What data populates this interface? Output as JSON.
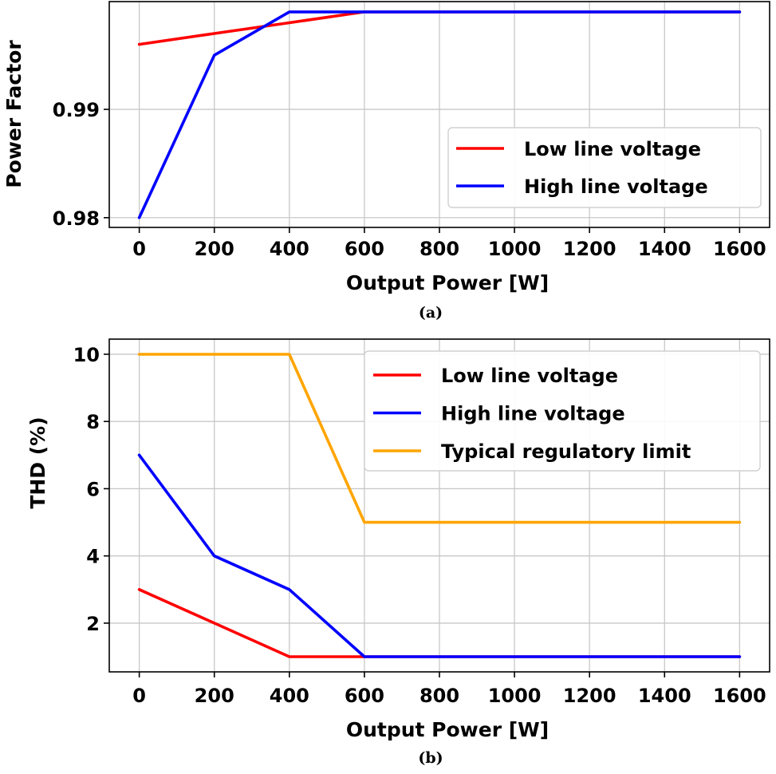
{
  "chart_data": [
    {
      "type": "line",
      "panel_label": "(a)",
      "xlabel": "Output Power [W]",
      "ylabel": "Power Factor",
      "x": [
        0,
        200,
        400,
        600,
        800,
        1000,
        1200,
        1400,
        1600
      ],
      "xticks": [
        "0",
        "200",
        "400",
        "600",
        "800",
        "1000",
        "1200",
        "1400",
        "1600"
      ],
      "yticks": [
        0.98,
        0.99
      ],
      "ytick_labels": [
        "0.98",
        "0.99"
      ],
      "ylim": [
        0.9791,
        0.99995
      ],
      "xlim": [
        -80,
        1680
      ],
      "legend_position": "center-right",
      "series": [
        {
          "name": "Low line voltage",
          "color": "#ff0000",
          "values": [
            0.996,
            0.997,
            0.998,
            0.999,
            0.999,
            0.999,
            0.999,
            0.999,
            0.999
          ]
        },
        {
          "name": "High line voltage",
          "color": "#0000ff",
          "values": [
            0.98,
            0.995,
            0.999,
            0.999,
            0.999,
            0.999,
            0.999,
            0.999,
            0.999
          ]
        }
      ]
    },
    {
      "type": "line",
      "panel_label": "(b)",
      "xlabel": "Output Power [W]",
      "ylabel": "THD (%)",
      "x": [
        0,
        200,
        400,
        600,
        800,
        1000,
        1200,
        1400,
        1600
      ],
      "xticks": [
        "0",
        "200",
        "400",
        "600",
        "800",
        "1000",
        "1200",
        "1400",
        "1600"
      ],
      "yticks": [
        2,
        4,
        6,
        8,
        10
      ],
      "ytick_labels": [
        "2",
        "4",
        "6",
        "8",
        "10"
      ],
      "ylim": [
        0.55,
        10.45
      ],
      "xlim": [
        -80,
        1680
      ],
      "legend_position": "top-right",
      "series": [
        {
          "name": "Low line voltage",
          "color": "#ff0000",
          "values": [
            3,
            2,
            1,
            1,
            1,
            1,
            1,
            1,
            1
          ]
        },
        {
          "name": "High line voltage",
          "color": "#0000ff",
          "values": [
            7,
            4,
            3,
            1,
            1,
            1,
            1,
            1,
            1
          ]
        },
        {
          "name": "Typical regulatory limit",
          "color": "#ffa500",
          "values": [
            10,
            10,
            10,
            5,
            5,
            5,
            5,
            5,
            5
          ]
        }
      ]
    }
  ]
}
